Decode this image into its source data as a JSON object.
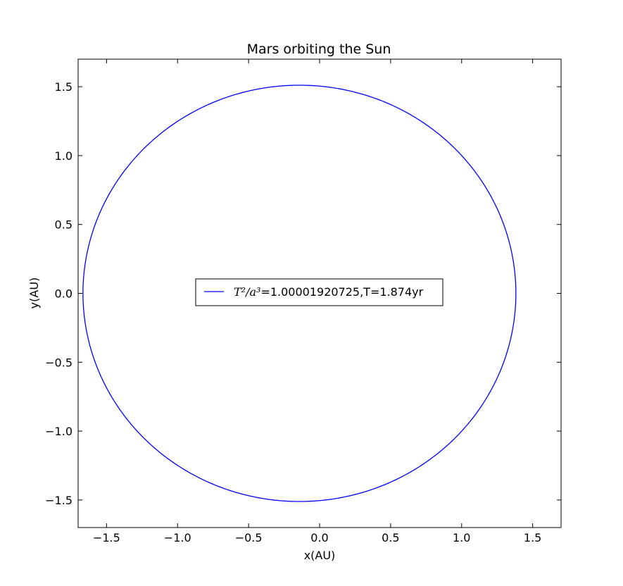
{
  "chart_data": {
    "type": "line",
    "title": "Mars orbiting the Sun",
    "xlabel": "x(AU)",
    "ylabel": "y(AU)",
    "xlim": [
      -1.7,
      1.7
    ],
    "ylim": [
      -1.7,
      1.7
    ],
    "xticks": [
      -1.5,
      -1.0,
      -0.5,
      0.0,
      0.5,
      1.0,
      1.5
    ],
    "yticks": [
      -1.5,
      -1.0,
      -0.5,
      0.0,
      0.5,
      1.0,
      1.5
    ],
    "xtick_labels": [
      "−1.5",
      "−1.0",
      "−0.5",
      "0.0",
      "0.5",
      "1.0",
      "1.5"
    ],
    "ytick_labels": [
      "−1.5",
      "−1.0",
      "−0.5",
      "0.0",
      "0.5",
      "1.0",
      "1.5"
    ],
    "grid": false,
    "legend_placement": "center",
    "series": [
      {
        "name_math": "T²/a³",
        "name_value": "=1.00001920725,T=1.874yr",
        "color": "#0000ff",
        "orbit": {
          "x_min": -1.666,
          "x_max": 1.382,
          "y_min": -1.511,
          "y_max": 1.511
        }
      }
    ]
  }
}
